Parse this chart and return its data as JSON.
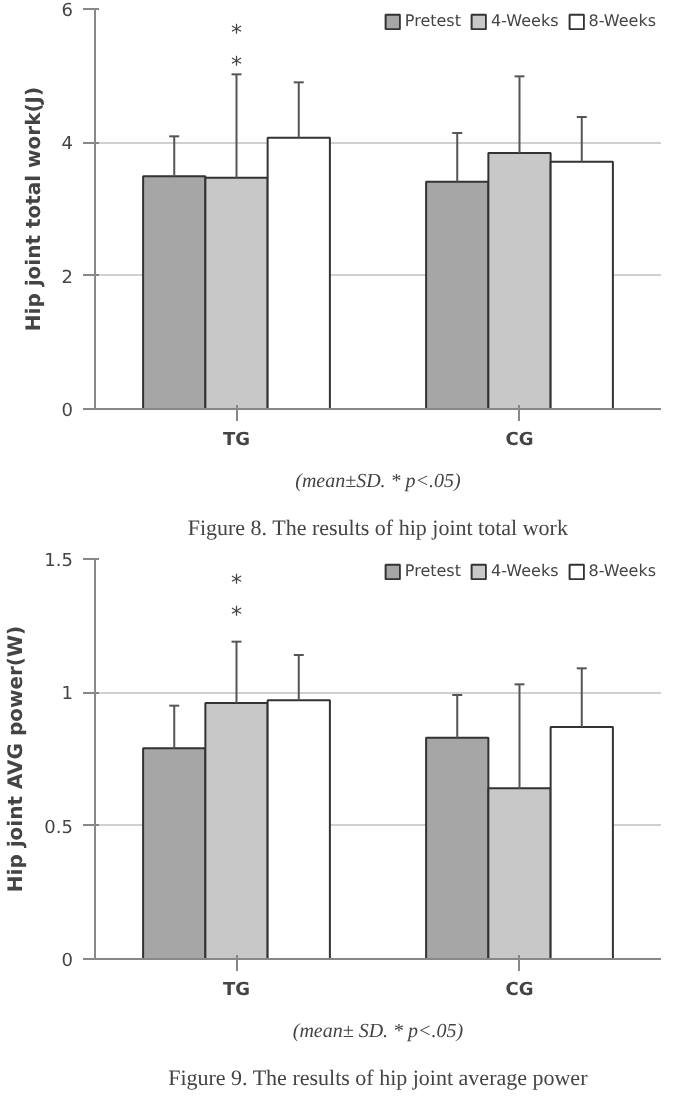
{
  "chart_data": [
    {
      "type": "bar",
      "title": "Figure 8. The results of hip joint total work",
      "subtitle": "(mean±SD. * p<.05)",
      "ylabel": "Hip joint total work(J)",
      "categories": [
        "TG",
        "CG"
      ],
      "ylim": [
        0,
        6
      ],
      "yticks": [
        0,
        2,
        4,
        6
      ],
      "grid": "y",
      "legend": "top right",
      "series": [
        {
          "name": "Pretest",
          "color": "#a6a6a6",
          "values": [
            3.49,
            3.41
          ],
          "errors": [
            [
              3.49,
              4.09
            ],
            [
              3.41,
              4.14
            ]
          ]
        },
        {
          "name": "4-Weeks",
          "color": "#c8c8c8",
          "values": [
            3.47,
            3.84
          ],
          "errors": [
            [
              3.47,
              5.02
            ],
            [
              3.84,
              4.99
            ]
          ]
        },
        {
          "name": "8-Weeks",
          "color": "#ffffff",
          "values": [
            4.07,
            3.71
          ],
          "errors": [
            [
              4.07,
              4.9
            ],
            [
              3.71,
              4.38
            ]
          ]
        }
      ],
      "annotations": [
        "*",
        "*"
      ]
    },
    {
      "type": "bar",
      "title": "Figure 9. The results of hip joint average power",
      "subtitle": "(mean± SD. * p<.05)",
      "ylabel": "Hip joint AVG power(W)",
      "categories": [
        "TG",
        "CG"
      ],
      "ylim": [
        0,
        1.5
      ],
      "yticks": [
        0,
        0.5,
        1,
        1.5
      ],
      "grid": "y",
      "legend": "top right",
      "series": [
        {
          "name": "Pretest",
          "color": "#a6a6a6",
          "values": [
            0.79,
            0.83
          ],
          "errors": [
            [
              0.79,
              0.95
            ],
            [
              0.83,
              0.99
            ]
          ]
        },
        {
          "name": "4-Weeks",
          "color": "#c8c8c8",
          "values": [
            0.96,
            0.64
          ],
          "errors": [
            [
              0.96,
              1.19
            ],
            [
              0.64,
              1.03
            ]
          ]
        },
        {
          "name": "8-Weeks",
          "color": "#ffffff",
          "values": [
            0.97,
            0.87
          ],
          "errors": [
            [
              0.97,
              1.14
            ],
            [
              0.87,
              1.09
            ]
          ]
        }
      ],
      "annotations": [
        "*",
        "*"
      ]
    }
  ]
}
